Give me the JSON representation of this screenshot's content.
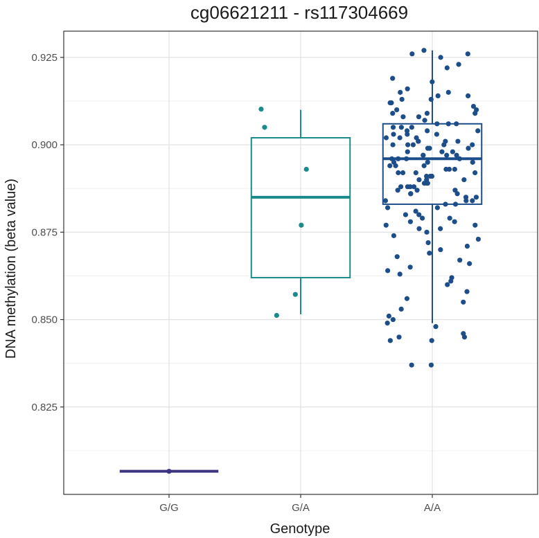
{
  "chart_data": {
    "type": "box",
    "title": "cg06621211 - rs117304669",
    "xlabel": "Genotype",
    "ylabel": "DNA methylation (beta value)",
    "ylim": [
      0.8,
      0.9325
    ],
    "yticks": [
      0.825,
      0.85,
      0.875,
      0.9,
      0.925
    ],
    "ytick_labels": [
      "0.825",
      "0.850",
      "0.875",
      "0.900",
      "0.925"
    ],
    "grid": true,
    "categories": [
      "G/G",
      "G/A",
      "A/A"
    ],
    "colors": [
      "#3b3280",
      "#1a8a8a",
      "#1d4e8a"
    ],
    "boxes": [
      {
        "category": "G/G",
        "min": 0.8066,
        "q1": 0.8066,
        "median": 0.8066,
        "q3": 0.8066,
        "max": 0.8066
      },
      {
        "category": "G/A",
        "min": 0.8515,
        "q1": 0.862,
        "median": 0.885,
        "q3": 0.902,
        "max": 0.91
      },
      {
        "category": "A/A",
        "min": 0.849,
        "q1": 0.883,
        "median": 0.896,
        "q3": 0.906,
        "max": 0.927
      }
    ],
    "points": [
      {
        "category": "G/G",
        "values": [
          0.8066
        ]
      },
      {
        "category": "G/A",
        "values": [
          0.893,
          0.905,
          0.8512,
          0.8572,
          0.877,
          0.9102
        ]
      },
      {
        "category": "A/A",
        "values": [
          0.926,
          0.925,
          0.927,
          0.926,
          0.923,
          0.922,
          0.919,
          0.918,
          0.916,
          0.915,
          0.915,
          0.914,
          0.913,
          0.913,
          0.912,
          0.911,
          0.91,
          0.91,
          0.909,
          0.909,
          0.908,
          0.907,
          0.906,
          0.906,
          0.905,
          0.905,
          0.904,
          0.904,
          0.903,
          0.903,
          0.902,
          0.902,
          0.901,
          0.901,
          0.901,
          0.9,
          0.9,
          0.9,
          0.899,
          0.899,
          0.898,
          0.898,
          0.897,
          0.897,
          0.897,
          0.896,
          0.896,
          0.895,
          0.895,
          0.894,
          0.894,
          0.893,
          0.893,
          0.892,
          0.892,
          0.891,
          0.891,
          0.89,
          0.89,
          0.889,
          0.889,
          0.888,
          0.888,
          0.887,
          0.887,
          0.886,
          0.886,
          0.885,
          0.885,
          0.884,
          0.884,
          0.883,
          0.883,
          0.882,
          0.882,
          0.881,
          0.88,
          0.88,
          0.879,
          0.879,
          0.878,
          0.878,
          0.877,
          0.877,
          0.876,
          0.876,
          0.875,
          0.874,
          0.873,
          0.872,
          0.871,
          0.87,
          0.869,
          0.868,
          0.867,
          0.866,
          0.865,
          0.864,
          0.863,
          0.862,
          0.861,
          0.86,
          0.858,
          0.856,
          0.855,
          0.853,
          0.851,
          0.85,
          0.849,
          0.848,
          0.846,
          0.845,
          0.845,
          0.844,
          0.844,
          0.837,
          0.837,
          0.912,
          0.908,
          0.904,
          0.9,
          0.896,
          0.892,
          0.888,
          0.884,
          0.9,
          0.903,
          0.897,
          0.894,
          0.891,
          0.889,
          0.902,
          0.906,
          0.899,
          0.893,
          0.887,
          0.895,
          0.898,
          0.901,
          0.886,
          0.89,
          0.909,
          0.914,
          0.905,
          0.896,
          0.892,
          0.888
        ]
      }
    ]
  }
}
